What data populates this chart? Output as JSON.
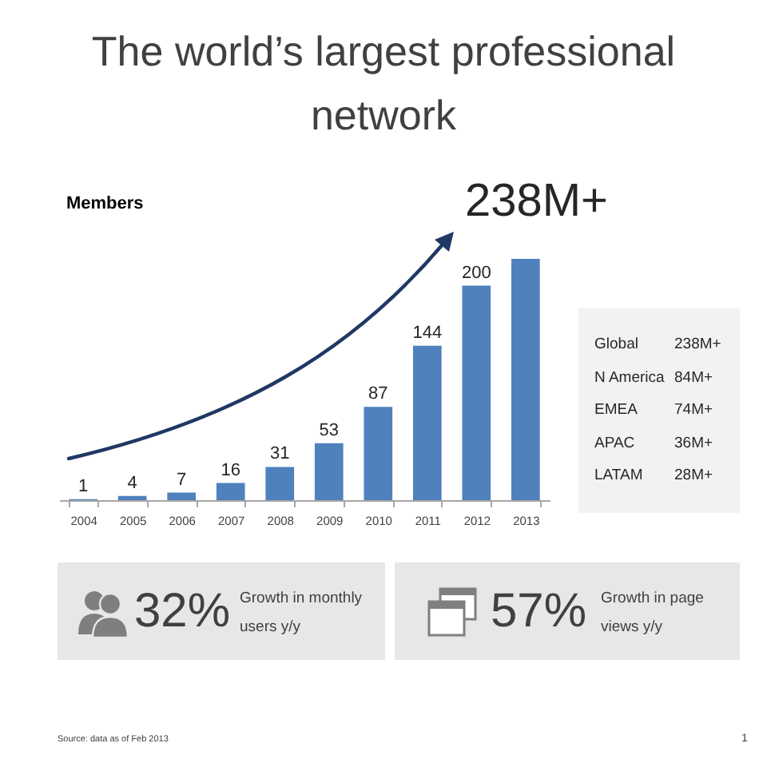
{
  "chart_data": [
    {
      "type": "bar",
      "title": "The world’s largest professional network",
      "ylabel": "Members",
      "categories": [
        "2004",
        "2005",
        "2006",
        "2007",
        "2008",
        "2009",
        "2010",
        "2011",
        "2012",
        "2013"
      ],
      "values": [
        1,
        4,
        7,
        16,
        31,
        53,
        87,
        144,
        200,
        225
      ],
      "value_labels": [
        "1",
        "4",
        "7",
        "16",
        "31",
        "53",
        "87",
        "144",
        "200",
        null
      ],
      "color": "#4f81bd",
      "tick_labels": "x",
      "annotations": [
        "238M+",
        "Source: data as of Feb 2013",
        "1"
      ]
    },
    {
      "type": "other",
      "annotations": [
        "Global",
        "238M+",
        "N America",
        "84M+",
        "EMEA",
        "74M+",
        "APAC",
        "36M+",
        "LATAM",
        "28M+"
      ]
    },
    {
      "type": "other",
      "annotations": [
        "32%",
        "Growth in monthly users y/y"
      ]
    },
    {
      "type": "other",
      "annotations": [
        "57%",
        "Growth in page views y/y"
      ]
    }
  ]
}
